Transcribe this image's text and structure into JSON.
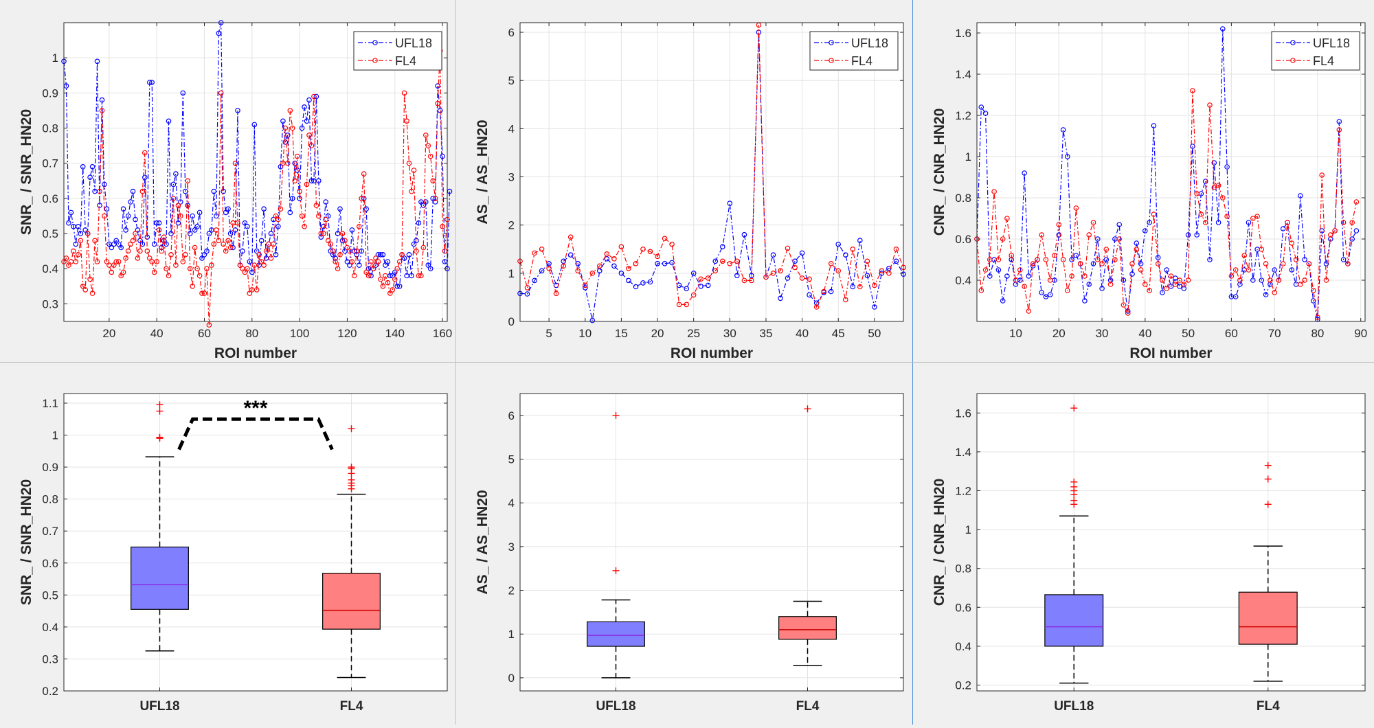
{
  "chart_data": [
    {
      "id": "p1",
      "type": "line",
      "xlabel": "ROI number",
      "ylabel": "SNR_ / SNR_HN20",
      "xlim": [
        1,
        162
      ],
      "ylim": [
        0.25,
        1.1
      ],
      "xticks": [
        20,
        40,
        60,
        80,
        100,
        120,
        140,
        160
      ],
      "yticks": [
        0.3,
        0.4,
        0.5,
        0.6,
        0.7,
        0.8,
        0.9,
        1
      ],
      "legend": [
        "UFL18",
        "FL4"
      ],
      "series": [
        {
          "name": "UFL18",
          "color": "#0000ff",
          "x_start": 1,
          "values": [
            0.99,
            0.92,
            0.53,
            0.56,
            0.52,
            0.47,
            0.52,
            0.5,
            0.69,
            0.51,
            0.5,
            0.66,
            0.69,
            0.62,
            0.99,
            0.58,
            0.88,
            0.64,
            0.57,
            0.47,
            0.46,
            0.47,
            0.48,
            0.47,
            0.46,
            0.57,
            0.51,
            0.55,
            0.59,
            0.62,
            0.54,
            0.51,
            0.48,
            0.47,
            0.66,
            0.49,
            0.93,
            0.93,
            0.47,
            0.53,
            0.53,
            0.46,
            0.48,
            0.47,
            0.82,
            0.5,
            0.64,
            0.67,
            0.53,
            0.59,
            0.9,
            0.62,
            0.58,
            0.5,
            0.55,
            0.51,
            0.52,
            0.56,
            0.43,
            0.44,
            0.45,
            0.5,
            0.51,
            0.62,
            0.55,
            1.07,
            1.1,
            0.62,
            0.56,
            0.57,
            0.5,
            0.46,
            0.51,
            0.85,
            0.41,
            0.45,
            0.53,
            0.52,
            0.42,
            0.39,
            0.81,
            0.45,
            0.41,
            0.48,
            0.57,
            0.43,
            0.47,
            0.5,
            0.54,
            0.44,
            0.52,
            0.69,
            0.82,
            0.76,
            0.78,
            0.56,
            0.6,
            0.7,
            0.68,
            0.6,
            0.8,
            0.86,
            0.82,
            0.88,
            0.65,
            0.65,
            0.89,
            0.65,
            0.49,
            0.52,
            0.59,
            0.55,
            0.45,
            0.44,
            0.43,
            0.5,
            0.57,
            0.48,
            0.45,
            0.42,
            0.41,
            0.51,
            0.45,
            0.44,
            0.41,
            0.45,
            0.6,
            0.57,
            0.4,
            0.38,
            0.4,
            0.41,
            0.44,
            0.44,
            0.44,
            0.41,
            0.42,
            0.38,
            0.38,
            0.39,
            0.35,
            0.35,
            0.44,
            0.43,
            0.38,
            0.44,
            0.38,
            0.47,
            0.48,
            0.53,
            0.59,
            0.58,
            0.59,
            0.41,
            0.4,
            0.6,
            0.59,
            0.92,
            0.85,
            0.72,
            0.42,
            0.4,
            0.62
          ]
        },
        {
          "name": "FL4",
          "color": "#ff0000",
          "x_start": 1,
          "values": [
            0.42,
            0.43,
            0.41,
            0.42,
            0.45,
            0.42,
            0.44,
            0.48,
            0.35,
            0.34,
            0.5,
            0.37,
            0.33,
            0.48,
            0.42,
            0.62,
            0.85,
            0.55,
            0.42,
            0.41,
            0.39,
            0.41,
            0.42,
            0.42,
            0.38,
            0.39,
            0.43,
            0.45,
            0.47,
            0.48,
            0.5,
            0.43,
            0.45,
            0.62,
            0.73,
            0.45,
            0.43,
            0.42,
            0.39,
            0.42,
            0.51,
            0.45,
            0.49,
            0.4,
            0.38,
            0.44,
            0.6,
            0.41,
            0.58,
            0.55,
            0.42,
            0.44,
            0.65,
            0.4,
            0.35,
            0.46,
            0.4,
            0.38,
            0.33,
            0.33,
            0.4,
            0.24,
            0.41,
            0.47,
            0.51,
            0.48,
            0.9,
            0.47,
            0.45,
            0.48,
            0.46,
            0.53,
            0.7,
            0.53,
            0.41,
            0.4,
            0.39,
            0.4,
            0.33,
            0.34,
            0.41,
            0.34,
            0.44,
            0.42,
            0.41,
            0.45,
            0.47,
            0.43,
            0.47,
            0.55,
            0.54,
            0.57,
            0.7,
            0.8,
            0.7,
            0.85,
            0.8,
            0.65,
            0.72,
            0.62,
            0.55,
            0.52,
            0.64,
            0.78,
            0.75,
            0.89,
            0.58,
            0.55,
            0.5,
            0.5,
            0.54,
            0.48,
            0.47,
            0.45,
            0.42,
            0.4,
            0.44,
            0.5,
            0.48,
            0.46,
            0.45,
            0.42,
            0.38,
            0.45,
            0.52,
            0.6,
            0.67,
            0.39,
            0.38,
            0.42,
            0.4,
            0.43,
            0.42,
            0.37,
            0.35,
            0.38,
            0.36,
            0.33,
            0.34,
            0.37,
            0.4,
            0.42,
            0.44,
            0.9,
            0.82,
            0.7,
            0.62,
            0.68,
            0.45,
            0.38,
            0.38,
            0.46,
            0.78,
            0.75,
            0.72,
            0.65,
            0.6,
            0.87,
            1.02,
            0.52,
            0.45,
            0.54
          ]
        }
      ]
    },
    {
      "id": "p2",
      "type": "line",
      "xlabel": "ROI number",
      "ylabel": "AS_ / AS_HN20",
      "xlim": [
        1,
        54
      ],
      "ylim": [
        0,
        6.2
      ],
      "xticks": [
        5,
        10,
        15,
        20,
        25,
        30,
        35,
        40,
        45,
        50
      ],
      "yticks": [
        0,
        1,
        2,
        3,
        4,
        5,
        6
      ],
      "legend": [
        "UFL18",
        "FL4"
      ],
      "series": [
        {
          "name": "UFL18",
          "color": "#0000ff",
          "x_start": 1,
          "values": [
            0.58,
            0.57,
            0.85,
            1.05,
            1.2,
            0.75,
            1.25,
            1.38,
            1.2,
            0.7,
            0.02,
            1.05,
            1.3,
            1.15,
            1.0,
            0.85,
            0.72,
            0.8,
            0.82,
            1.2,
            1.2,
            1.22,
            0.75,
            0.68,
            1.0,
            0.73,
            0.75,
            1.25,
            1.55,
            2.45,
            0.95,
            1.8,
            0.95,
            6.0,
            0.92,
            1.38,
            0.48,
            0.9,
            1.25,
            1.42,
            0.55,
            0.38,
            0.6,
            0.62,
            1.6,
            1.38,
            0.72,
            1.68,
            0.95,
            0.3,
            1.0,
            1.1,
            1.25,
            0.98
          ]
        },
        {
          "name": "FL4",
          "color": "#ff0000",
          "x_start": 1,
          "values": [
            1.25,
            0.7,
            1.42,
            1.5,
            1.1,
            0.58,
            1.15,
            1.75,
            1.05,
            0.75,
            1.0,
            1.15,
            1.4,
            1.3,
            1.55,
            1.1,
            1.2,
            1.5,
            1.45,
            1.35,
            1.72,
            1.6,
            0.35,
            0.35,
            0.55,
            0.88,
            0.9,
            1.05,
            1.25,
            1.2,
            1.25,
            0.85,
            0.85,
            6.15,
            0.92,
            1.0,
            1.05,
            1.52,
            1.12,
            0.9,
            0.88,
            0.3,
            0.62,
            1.2,
            1.05,
            0.45,
            1.5,
            0.72,
            1.25,
            0.75,
            1.05,
            1.0,
            1.5,
            1.12
          ]
        }
      ]
    },
    {
      "id": "p3",
      "type": "line",
      "xlabel": "ROI number",
      "ylabel": "CNR_ / CNR_HN20",
      "xlim": [
        1,
        91
      ],
      "ylim": [
        0.2,
        1.65
      ],
      "xticks": [
        10,
        20,
        30,
        40,
        50,
        60,
        70,
        80,
        90
      ],
      "yticks": [
        0.4,
        0.6,
        0.8,
        1,
        1.2,
        1.4,
        1.6
      ],
      "legend": [
        "UFL18",
        "FL4"
      ],
      "series": [
        {
          "name": "UFL18",
          "color": "#0000ff",
          "x_start": 1,
          "values": [
            0.6,
            1.24,
            1.21,
            0.42,
            0.5,
            0.45,
            0.3,
            0.42,
            0.5,
            0.38,
            0.4,
            0.92,
            0.42,
            0.47,
            0.5,
            0.34,
            0.32,
            0.33,
            0.4,
            0.62,
            1.13,
            1.0,
            0.5,
            0.52,
            0.48,
            0.3,
            0.38,
            0.48,
            0.6,
            0.36,
            0.5,
            0.4,
            0.6,
            0.67,
            0.4,
            0.25,
            0.43,
            0.58,
            0.48,
            0.64,
            0.68,
            1.15,
            0.51,
            0.34,
            0.45,
            0.37,
            0.41,
            0.37,
            0.36,
            0.62,
            1.05,
            0.62,
            0.82,
            0.88,
            0.5,
            0.97,
            0.68,
            1.62,
            0.95,
            0.32,
            0.32,
            0.38,
            0.45,
            0.68,
            0.4,
            0.55,
            0.4,
            0.33,
            0.38,
            0.45,
            0.4,
            0.65,
            0.68,
            0.45,
            0.38,
            0.81,
            0.5,
            0.48,
            0.3,
            0.21,
            0.64,
            0.48,
            0.6,
            0.64,
            1.17,
            0.5,
            0.48,
            0.6,
            0.64
          ]
        },
        {
          "name": "FL4",
          "color": "#ff0000",
          "x_start": 1,
          "values": [
            0.6,
            0.35,
            0.45,
            0.5,
            0.83,
            0.5,
            0.6,
            0.7,
            0.52,
            0.4,
            0.45,
            0.37,
            0.25,
            0.48,
            0.5,
            0.62,
            0.5,
            0.4,
            0.52,
            0.67,
            0.5,
            0.35,
            0.42,
            0.75,
            0.48,
            0.42,
            0.62,
            0.68,
            0.5,
            0.48,
            0.55,
            0.38,
            0.5,
            0.6,
            0.28,
            0.24,
            0.48,
            0.55,
            0.45,
            0.38,
            0.35,
            0.72,
            0.48,
            0.4,
            0.36,
            0.42,
            0.38,
            0.4,
            0.38,
            0.4,
            1.32,
            0.82,
            0.72,
            0.68,
            1.25,
            0.85,
            0.86,
            0.8,
            0.71,
            0.42,
            0.45,
            0.4,
            0.52,
            0.45,
            0.7,
            0.71,
            0.55,
            0.48,
            0.4,
            0.34,
            0.4,
            0.48,
            0.68,
            0.58,
            0.5,
            0.38,
            0.4,
            0.48,
            0.35,
            0.22,
            0.91,
            0.4,
            0.62,
            0.64,
            1.13,
            0.68,
            0.48,
            0.68,
            0.78
          ]
        }
      ]
    },
    {
      "id": "b1",
      "type": "box",
      "ylabel": "SNR_ / SNR_HN20",
      "categories": [
        "UFL18",
        "FL4"
      ],
      "ylim": [
        0.2,
        1.13
      ],
      "yticks": [
        0.2,
        0.3,
        0.4,
        0.5,
        0.6,
        0.7,
        0.8,
        0.9,
        1,
        1.1
      ],
      "significance": "***",
      "boxes": [
        {
          "name": "UFL18",
          "fill": "#8080ff",
          "median_color": "#8a2be2",
          "q1": 0.455,
          "median": 0.532,
          "q3": 0.65,
          "whisker_low": 0.325,
          "whisker_high": 0.932,
          "outliers": [
            0.99,
            0.993,
            1.075,
            1.095
          ]
        },
        {
          "name": "FL4",
          "fill": "#ff8080",
          "median_color": "#cc0000",
          "q1": 0.393,
          "median": 0.452,
          "q3": 0.568,
          "whisker_low": 0.242,
          "whisker_high": 0.815,
          "outliers": [
            0.832,
            0.842,
            0.85,
            0.86,
            0.88,
            0.895,
            0.9,
            1.02
          ]
        }
      ]
    },
    {
      "id": "b2",
      "type": "box",
      "ylabel": "AS_ / AS_HN20",
      "categories": [
        "UFL18",
        "FL4"
      ],
      "ylim": [
        -0.3,
        6.5
      ],
      "yticks": [
        0,
        1,
        2,
        3,
        4,
        5,
        6
      ],
      "boxes": [
        {
          "name": "UFL18",
          "fill": "#8080ff",
          "median_color": "#8a2be2",
          "q1": 0.72,
          "median": 0.97,
          "q3": 1.28,
          "whisker_low": 0.0,
          "whisker_high": 1.78,
          "outliers": [
            2.45,
            6.0
          ]
        },
        {
          "name": "FL4",
          "fill": "#ff8080",
          "median_color": "#cc0000",
          "q1": 0.88,
          "median": 1.1,
          "q3": 1.4,
          "whisker_low": 0.28,
          "whisker_high": 1.75,
          "outliers": [
            6.15
          ]
        }
      ]
    },
    {
      "id": "b3",
      "type": "box",
      "ylabel": "CNR_ / CNR_HN20",
      "categories": [
        "UFL18",
        "FL4"
      ],
      "ylim": [
        0.17,
        1.7
      ],
      "yticks": [
        0.2,
        0.4,
        0.6,
        0.8,
        1,
        1.2,
        1.4,
        1.6
      ],
      "boxes": [
        {
          "name": "UFL18",
          "fill": "#8080ff",
          "median_color": "#8a2be2",
          "q1": 0.4,
          "median": 0.5,
          "q3": 0.665,
          "whisker_low": 0.21,
          "whisker_high": 1.07,
          "outliers": [
            1.13,
            1.15,
            1.18,
            1.2,
            1.22,
            1.245,
            1.625
          ]
        },
        {
          "name": "FL4",
          "fill": "#ff8080",
          "median_color": "#cc0000",
          "q1": 0.41,
          "median": 0.5,
          "q3": 0.678,
          "whisker_low": 0.22,
          "whisker_high": 0.915,
          "outliers": [
            1.13,
            1.26,
            1.33
          ]
        }
      ]
    }
  ]
}
